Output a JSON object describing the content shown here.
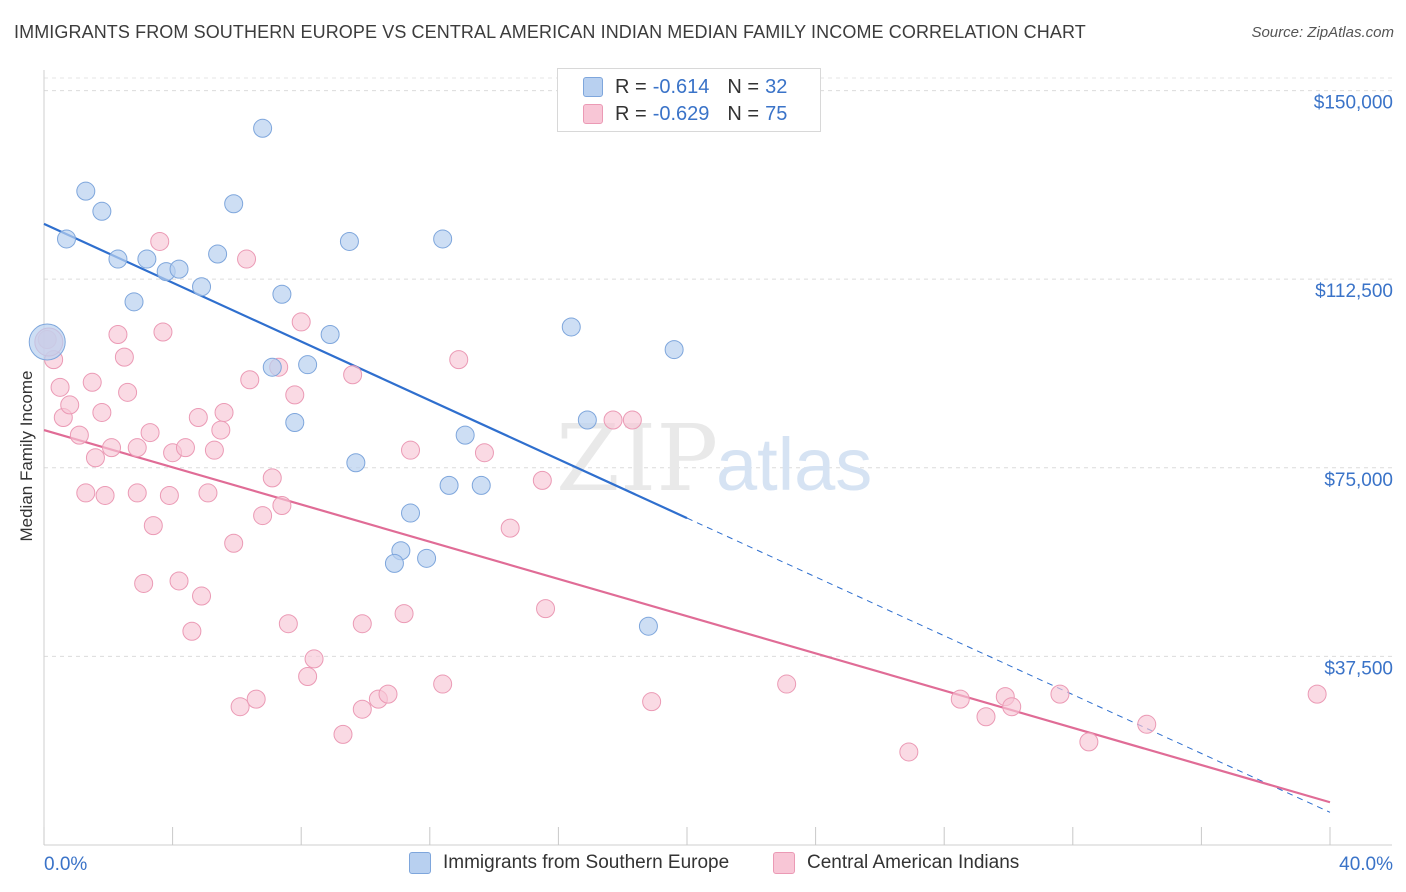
{
  "header": {
    "title": "IMMIGRANTS FROM SOUTHERN EUROPE VS CENTRAL AMERICAN INDIAN MEDIAN FAMILY INCOME CORRELATION CHART",
    "source": "Source: ZipAtlas.com"
  },
  "legend": {
    "r_label": "R =",
    "n_label": "N =",
    "rows": [
      {
        "r": "-0.614",
        "n": "32"
      },
      {
        "r": "-0.629",
        "n": "75"
      }
    ]
  },
  "watermark": {
    "zip": "ZIP",
    "atlas": "atlas"
  },
  "colors": {
    "blue_fill": "#b8d0f0",
    "blue_stroke": "#7ea6dc",
    "blue_line": "#2f6fce",
    "pink_fill": "#f8c6d6",
    "pink_stroke": "#eb9ab5",
    "pink_line": "#e06c96",
    "axis_text": "#3a73c8"
  },
  "chart_data": {
    "type": "scatter",
    "xlabel": "",
    "ylabel": "Median Family Income",
    "xlim": [
      0,
      40
    ],
    "ylim": [
      0,
      152500
    ],
    "x_tick_labels": [
      "0.0%",
      "40.0%"
    ],
    "y_ticks": [
      37500,
      75000,
      112500,
      150000
    ],
    "y_tick_labels": [
      "$37,500",
      "$75,000",
      "$112,500",
      "$150,000"
    ],
    "grid": true,
    "legend_position": "top-center",
    "series": [
      {
        "name": "Immigrants from Southern Europe",
        "color": "#7ea6dc",
        "trend": {
          "x0": 0,
          "y0": 123500,
          "x1": 20,
          "y1": 65000,
          "dashed_to_x": 40,
          "dashed_to_y": 6500
        },
        "points": [
          [
            0.1,
            100000
          ],
          [
            0.7,
            120500
          ],
          [
            1.3,
            130000
          ],
          [
            1.8,
            126000
          ],
          [
            2.3,
            116500
          ],
          [
            2.8,
            108000
          ],
          [
            3.2,
            116500
          ],
          [
            3.8,
            114000
          ],
          [
            4.2,
            114500
          ],
          [
            4.9,
            111000
          ],
          [
            5.4,
            117500
          ],
          [
            5.9,
            127500
          ],
          [
            6.8,
            142500
          ],
          [
            7.1,
            95000
          ],
          [
            7.4,
            109500
          ],
          [
            7.8,
            84000
          ],
          [
            8.2,
            95500
          ],
          [
            8.9,
            101500
          ],
          [
            9.5,
            120000
          ],
          [
            9.7,
            76000
          ],
          [
            11.1,
            58500
          ],
          [
            10.9,
            56000
          ],
          [
            11.4,
            66000
          ],
          [
            11.9,
            57000
          ],
          [
            12.4,
            120500
          ],
          [
            12.6,
            71500
          ],
          [
            13.1,
            81500
          ],
          [
            13.6,
            71500
          ],
          [
            16.4,
            103000
          ],
          [
            16.9,
            84500
          ],
          [
            18.8,
            43500
          ],
          [
            19.6,
            98500
          ]
        ]
      },
      {
        "name": "Central American Indians",
        "color": "#eb9ab5",
        "trend": {
          "x0": 0,
          "y0": 82500,
          "x1": 40,
          "y1": 8500
        },
        "points": [
          [
            0.1,
            100500
          ],
          [
            0.3,
            96500
          ],
          [
            0.5,
            91000
          ],
          [
            0.6,
            85000
          ],
          [
            0.8,
            87500
          ],
          [
            1.1,
            81500
          ],
          [
            1.3,
            70000
          ],
          [
            1.5,
            92000
          ],
          [
            1.6,
            77000
          ],
          [
            1.8,
            86000
          ],
          [
            1.9,
            69500
          ],
          [
            2.1,
            79000
          ],
          [
            2.3,
            101500
          ],
          [
            2.5,
            97000
          ],
          [
            2.6,
            90000
          ],
          [
            2.9,
            70000
          ],
          [
            2.9,
            79000
          ],
          [
            3.1,
            52000
          ],
          [
            3.3,
            82000
          ],
          [
            3.4,
            63500
          ],
          [
            3.6,
            120000
          ],
          [
            3.7,
            102000
          ],
          [
            3.9,
            69500
          ],
          [
            4.0,
            78000
          ],
          [
            4.2,
            52500
          ],
          [
            4.4,
            79000
          ],
          [
            4.6,
            42500
          ],
          [
            4.8,
            85000
          ],
          [
            4.9,
            49500
          ],
          [
            5.1,
            70000
          ],
          [
            5.3,
            78500
          ],
          [
            5.5,
            82500
          ],
          [
            5.6,
            86000
          ],
          [
            5.9,
            60000
          ],
          [
            6.1,
            27500
          ],
          [
            6.3,
            116500
          ],
          [
            6.4,
            92500
          ],
          [
            6.6,
            29000
          ],
          [
            6.8,
            65500
          ],
          [
            7.1,
            73000
          ],
          [
            7.3,
            95000
          ],
          [
            7.4,
            67500
          ],
          [
            7.6,
            44000
          ],
          [
            7.8,
            89500
          ],
          [
            8.0,
            104000
          ],
          [
            8.2,
            33500
          ],
          [
            8.4,
            37000
          ],
          [
            9.3,
            22000
          ],
          [
            9.6,
            93500
          ],
          [
            9.9,
            44000
          ],
          [
            9.9,
            27000
          ],
          [
            10.4,
            29000
          ],
          [
            10.7,
            30000
          ],
          [
            11.2,
            46000
          ],
          [
            11.4,
            78500
          ],
          [
            12.4,
            32000
          ],
          [
            12.9,
            96500
          ],
          [
            13.7,
            78000
          ],
          [
            14.5,
            63000
          ],
          [
            15.5,
            72500
          ],
          [
            15.6,
            47000
          ],
          [
            17.7,
            84500
          ],
          [
            18.3,
            84500
          ],
          [
            18.9,
            28500
          ],
          [
            23.1,
            32000
          ],
          [
            26.9,
            18500
          ],
          [
            28.5,
            29000
          ],
          [
            29.3,
            25500
          ],
          [
            29.9,
            29500
          ],
          [
            30.1,
            27500
          ],
          [
            31.6,
            30000
          ],
          [
            32.5,
            20500
          ],
          [
            34.3,
            24000
          ],
          [
            39.6,
            30000
          ],
          [
            0.15,
            100000
          ]
        ]
      }
    ]
  }
}
